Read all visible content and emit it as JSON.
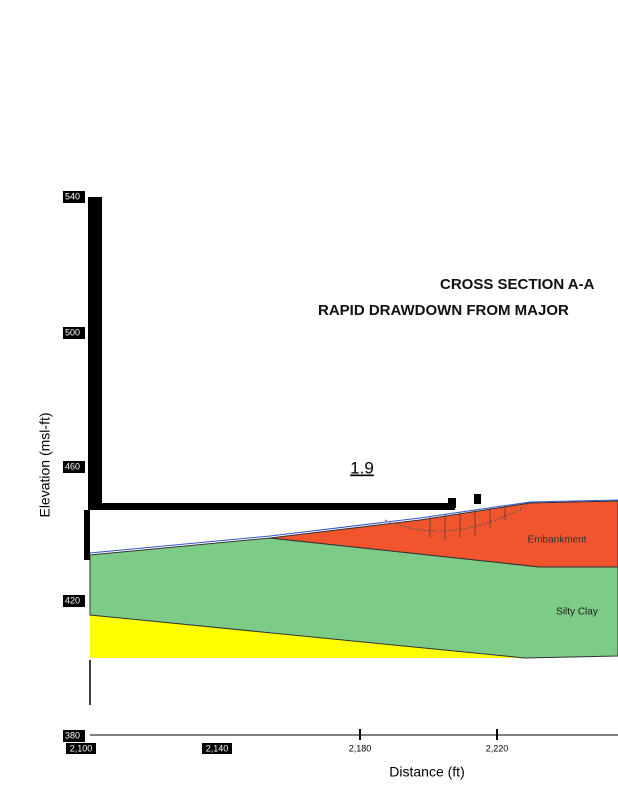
{
  "title": {
    "line1": "CROSS SECTION A-A",
    "line2": "RAPID DRAWDOWN FROM MAJOR"
  },
  "factor_of_safety": "1.9",
  "axes": {
    "y_label": "Elevation (msl-ft)",
    "x_label": "Distance (ft)",
    "y_ticks": [
      "540",
      "500",
      "460",
      "420",
      "380"
    ],
    "x_ticks": [
      "2,100",
      "2,140",
      "2,180",
      "2,220"
    ]
  },
  "layers": {
    "embankment": "Embankment",
    "silty_clay": "Silty Clay"
  }
}
